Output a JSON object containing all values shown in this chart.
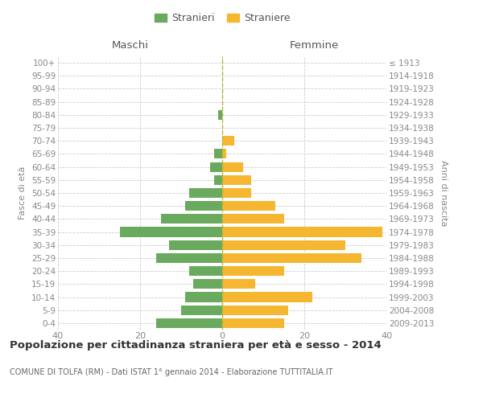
{
  "age_groups": [
    "0-4",
    "5-9",
    "10-14",
    "15-19",
    "20-24",
    "25-29",
    "30-34",
    "35-39",
    "40-44",
    "45-49",
    "50-54",
    "55-59",
    "60-64",
    "65-69",
    "70-74",
    "75-79",
    "80-84",
    "85-89",
    "90-94",
    "95-99",
    "100+"
  ],
  "birth_years": [
    "2009-2013",
    "2004-2008",
    "1999-2003",
    "1994-1998",
    "1989-1993",
    "1984-1988",
    "1979-1983",
    "1974-1978",
    "1969-1973",
    "1964-1968",
    "1959-1963",
    "1954-1958",
    "1949-1953",
    "1944-1948",
    "1939-1943",
    "1934-1938",
    "1929-1933",
    "1924-1928",
    "1919-1923",
    "1914-1918",
    "≤ 1913"
  ],
  "maschi": [
    16,
    10,
    9,
    7,
    8,
    16,
    13,
    25,
    15,
    9,
    8,
    2,
    3,
    2,
    0,
    0,
    1,
    0,
    0,
    0,
    0
  ],
  "femmine": [
    15,
    16,
    22,
    8,
    15,
    34,
    30,
    39,
    15,
    13,
    7,
    7,
    5,
    1,
    3,
    0,
    0,
    0,
    0,
    0,
    0
  ],
  "color_maschi": "#6aaa5e",
  "color_femmine": "#f5b731",
  "title": "Popolazione per cittadinanza straniera per età e sesso - 2014",
  "subtitle": "COMUNE DI TOLFA (RM) - Dati ISTAT 1° gennaio 2014 - Elaborazione TUTTITALIA.IT",
  "ylabel_left": "Fasce di età",
  "ylabel_right": "Anni di nascita",
  "xlabel_left": "Maschi",
  "xlabel_right": "Femmine",
  "legend_maschi": "Stranieri",
  "legend_femmine": "Straniere",
  "xlim": 40,
  "background_color": "#ffffff",
  "grid_color": "#cccccc",
  "text_color": "#888888"
}
